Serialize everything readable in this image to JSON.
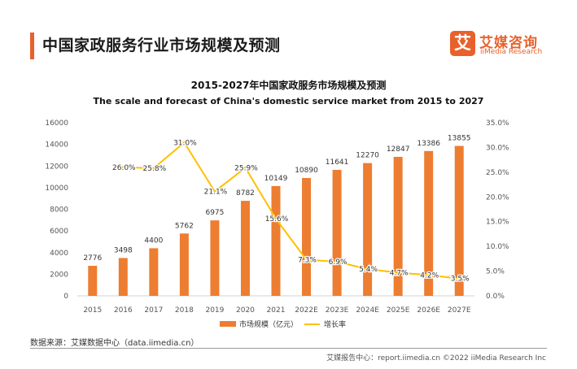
{
  "header": {
    "title": "中国家政服务行业市场规模及预测"
  },
  "brand": {
    "mark": "艾",
    "name_cn": "艾媒咨询",
    "name_en": "iiMedia Research",
    "color": "#e8612c"
  },
  "chart_data": {
    "type": "bar",
    "title": "2015-2027年中国家政服务市场规模及预测",
    "subtitle": "The scale and forecast of China's domestic service market from 2015 to 2027",
    "categories": [
      "2015",
      "2016",
      "2017",
      "2018",
      "2019",
      "2020",
      "2021",
      "2022E",
      "2023E",
      "2024E",
      "2025E",
      "2026E",
      "2027E"
    ],
    "series": [
      {
        "name": "市场规模（亿元）",
        "kind": "bar",
        "axis": "left",
        "color": "#ed7d31",
        "values": [
          2776,
          3498,
          4400,
          5762,
          6975,
          8782,
          10149,
          10890,
          11641,
          12270,
          12847,
          13386,
          13855
        ],
        "labels": [
          "2776",
          "3498",
          "4400",
          "5762",
          "6975",
          "8782",
          "10149",
          "10890",
          "11641",
          "12270",
          "12847",
          "13386",
          "13855"
        ]
      },
      {
        "name": "增长率",
        "kind": "line",
        "axis": "right",
        "color": "#ffc000",
        "values": [
          null,
          26.0,
          25.8,
          31.0,
          21.1,
          25.9,
          15.6,
          7.3,
          6.9,
          5.4,
          4.7,
          4.2,
          3.5
        ],
        "labels": [
          "",
          "26.0%",
          "25.8%",
          "31.0%",
          "21.1%",
          "25.9%",
          "15.6%",
          "7.3%",
          "6.9%",
          "5.4%",
          "4.7%",
          "4.2%",
          "3.5%"
        ]
      }
    ],
    "y_left": {
      "min": 0,
      "max": 16000,
      "ticks": [
        "0",
        "2000",
        "4000",
        "6000",
        "8000",
        "10000",
        "12000",
        "14000",
        "16000"
      ]
    },
    "y_right": {
      "min": 0,
      "max": 35,
      "ticks": [
        "0.0%",
        "5.0%",
        "10.0%",
        "15.0%",
        "20.0%",
        "25.0%",
        "30.0%",
        "35.0%"
      ]
    },
    "grid": false,
    "legend_position": "bottom"
  },
  "source": "数据来源：艾媒数据中心（data.iimedia.cn）",
  "footer": "艾媒报告中心：report.iimedia.cn  ©2022  iiMedia Research  Inc"
}
